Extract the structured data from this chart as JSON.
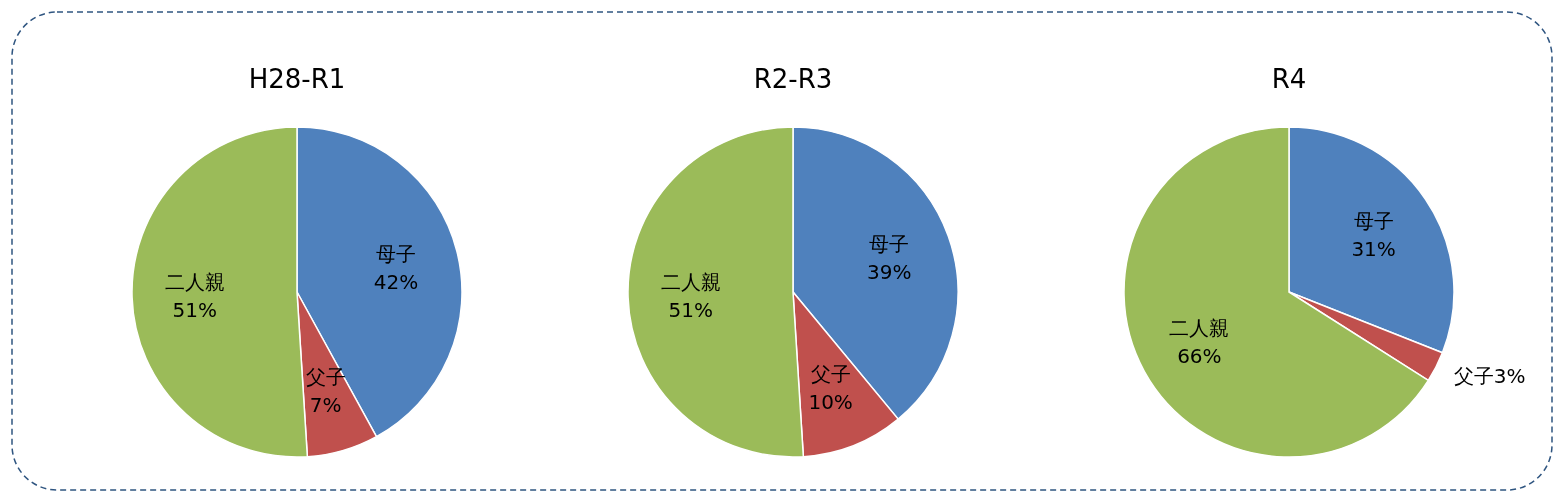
{
  "chart_data": [
    {
      "type": "pie",
      "title": "H28-R1",
      "categories": [
        "母子",
        "父子",
        "二人親"
      ],
      "values": [
        42,
        7,
        51
      ],
      "colors": [
        "#4f81bd",
        "#c0504d",
        "#9bbb59"
      ],
      "value_labels": [
        "42%",
        "7%",
        "51%"
      ]
    },
    {
      "type": "pie",
      "title": "R2-R3",
      "categories": [
        "母子",
        "父子",
        "二人親"
      ],
      "values": [
        39,
        10,
        51
      ],
      "colors": [
        "#4f81bd",
        "#c0504d",
        "#9bbb59"
      ],
      "value_labels": [
        "39%",
        "10%",
        "51%"
      ]
    },
    {
      "type": "pie",
      "title": "R4",
      "categories": [
        "母子",
        "父子",
        "二人親"
      ],
      "values": [
        31,
        3,
        66
      ],
      "colors": [
        "#4f81bd",
        "#c0504d",
        "#9bbb59"
      ],
      "value_labels": [
        "31%",
        "3%",
        "66%"
      ]
    }
  ]
}
